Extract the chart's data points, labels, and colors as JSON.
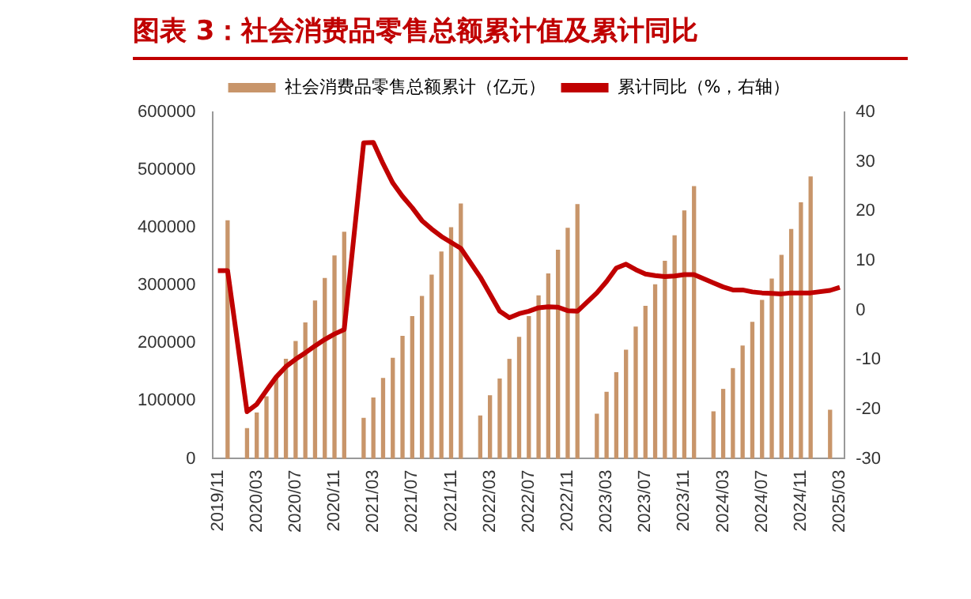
{
  "chart_data": {
    "type": "bar",
    "title": "图表 3：社会消费品零售总额累计值及累计同比",
    "categories": [
      "2019/11",
      null,
      null,
      null,
      "2020/03",
      null,
      null,
      null,
      "2020/07",
      null,
      null,
      null,
      "2020/11",
      null,
      null,
      null,
      "2021/03",
      null,
      null,
      null,
      "2021/07",
      null,
      null,
      null,
      "2021/11",
      null,
      null,
      null,
      "2022/03",
      null,
      null,
      null,
      "2022/07",
      null,
      null,
      null,
      "2022/11",
      null,
      null,
      null,
      "2023/03",
      null,
      null,
      null,
      "2023/07",
      null,
      null,
      null,
      "2023/11",
      null,
      null,
      null,
      "2024/03",
      null,
      null,
      null,
      "2024/07",
      null,
      null,
      null,
      "2024/11",
      null,
      null,
      null,
      "2025/03"
    ],
    "series": [
      {
        "name": "社会消费品零售总额累计（亿元）",
        "color": "#c8956a",
        "values": [
          null,
          412000,
          null,
          52000,
          79000,
          107000,
          139000,
          172000,
          203000,
          235000,
          273000,
          312000,
          351000,
          392000,
          null,
          70000,
          105000,
          139000,
          174000,
          212000,
          246000,
          281000,
          318000,
          358000,
          400000,
          441000,
          null,
          74000,
          109000,
          138000,
          172000,
          210000,
          246000,
          282000,
          320000,
          361000,
          399000,
          440000,
          null,
          77000,
          115000,
          149000,
          188000,
          228000,
          264000,
          301000,
          342000,
          386000,
          429000,
          471000,
          null,
          81000,
          120000,
          156000,
          195000,
          236000,
          274000,
          311000,
          352000,
          397000,
          443000,
          488000,
          null,
          84000,
          null
        ]
      },
      {
        "name": "累计同比（%，右轴）",
        "type": "line",
        "axis": "y2",
        "color": "#c00000",
        "values": [
          8.0,
          8.0,
          null,
          -20.5,
          -19.0,
          -16.2,
          -13.5,
          -11.4,
          -9.9,
          -8.6,
          -7.2,
          -5.9,
          -4.8,
          -3.9,
          null,
          33.8,
          33.9,
          29.6,
          25.7,
          23.0,
          20.7,
          18.1,
          16.4,
          14.9,
          13.7,
          12.5,
          null,
          6.7,
          3.3,
          -0.2,
          -1.5,
          -0.7,
          -0.2,
          0.5,
          0.7,
          0.6,
          -0.1,
          -0.2,
          null,
          3.5,
          5.8,
          8.5,
          9.3,
          8.2,
          7.3,
          7.0,
          6.8,
          6.9,
          7.2,
          7.2,
          null,
          5.5,
          4.7,
          4.1,
          4.1,
          3.7,
          3.5,
          3.4,
          3.3,
          3.5,
          3.5,
          3.5,
          null,
          4.0,
          4.6
        ]
      }
    ],
    "ylim": [
      0,
      600000
    ],
    "yticks": [
      0,
      100000,
      200000,
      300000,
      400000,
      500000,
      600000
    ],
    "y2lim": [
      -30,
      40
    ],
    "y2ticks": [
      -30,
      -20,
      -10,
      0,
      10,
      20,
      30,
      40
    ],
    "legend": "top",
    "grid": false,
    "marker": "none"
  }
}
